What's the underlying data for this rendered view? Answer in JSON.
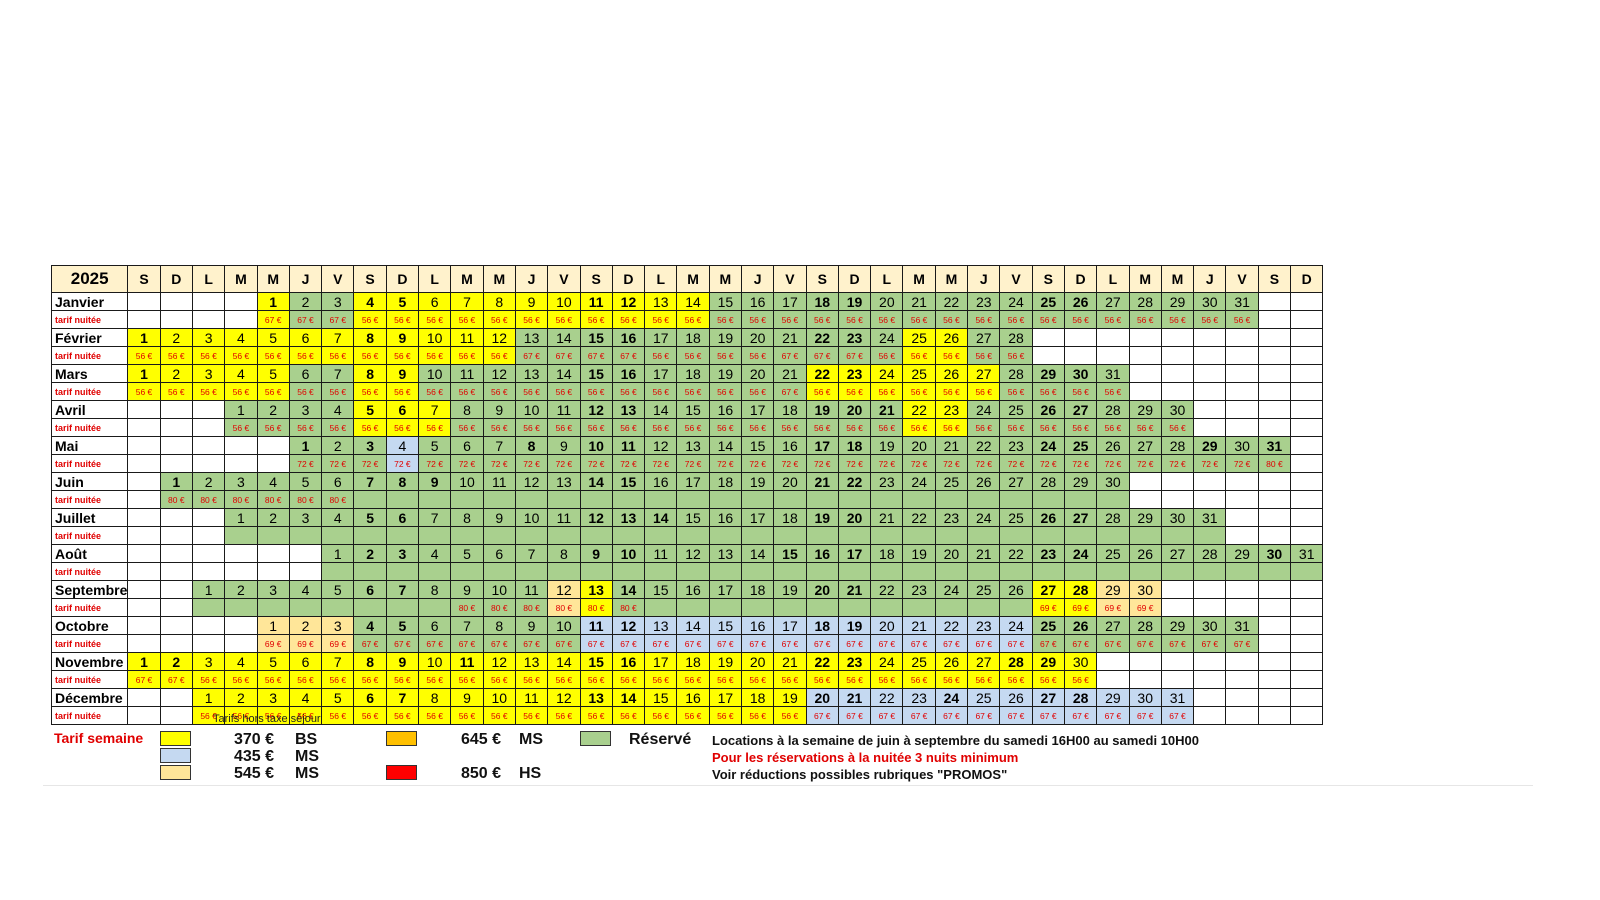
{
  "year": "2025",
  "day_headers": [
    "S",
    "D",
    "L",
    "M",
    "M",
    "J",
    "V",
    "S",
    "D",
    "L",
    "M",
    "M",
    "J",
    "V",
    "S",
    "D",
    "L",
    "M",
    "M",
    "J",
    "V",
    "S",
    "D",
    "L",
    "M",
    "M",
    "J",
    "V",
    "S",
    "D",
    "L",
    "M",
    "M",
    "J",
    "V",
    "S",
    "D"
  ],
  "price_row_label": "tarif nuitée",
  "months": [
    {
      "name": "Janvier",
      "start": 4,
      "days": 31,
      "bold": [
        1,
        4,
        5,
        11,
        12,
        18,
        19,
        25,
        26
      ],
      "yellow": [
        1,
        4,
        5,
        6,
        7,
        8,
        9,
        10,
        11,
        12,
        13,
        14
      ],
      "green": [
        2,
        3,
        15,
        16,
        17,
        18,
        19,
        20,
        21,
        22,
        23,
        24,
        25,
        26,
        27,
        28,
        29,
        30,
        31
      ],
      "blue": [],
      "peach": [],
      "prices": [
        {
          "from": 1,
          "to": 3,
          "p": "67 €"
        },
        {
          "from": 4,
          "to": 31,
          "p": "56 €"
        }
      ]
    },
    {
      "name": "Février",
      "start": 0,
      "days": 28,
      "bold": [
        1,
        8,
        9,
        15,
        16,
        22,
        23
      ],
      "yellow": [
        1,
        2,
        3,
        4,
        5,
        6,
        7,
        8,
        9,
        10,
        11,
        12,
        25,
        26
      ],
      "green": [
        13,
        14,
        15,
        16,
        17,
        18,
        19,
        20,
        21,
        22,
        23,
        24,
        27,
        28
      ],
      "blue": [],
      "peach": [],
      "prices": [
        {
          "from": 1,
          "to": 12,
          "p": "56 €"
        },
        {
          "from": 13,
          "to": 16,
          "p": "67 €"
        },
        {
          "from": 17,
          "to": 20,
          "p": "56 €"
        },
        {
          "from": 21,
          "to": 23,
          "p": "67 €"
        },
        {
          "from": 24,
          "to": 28,
          "p": "56 €"
        }
      ]
    },
    {
      "name": "Mars",
      "start": 0,
      "days": 31,
      "bold": [
        1,
        8,
        9,
        15,
        16,
        22,
        23,
        29,
        30
      ],
      "yellow": [
        1,
        2,
        3,
        4,
        5,
        8,
        9,
        22,
        23,
        24,
        25,
        26,
        27
      ],
      "green": [
        6,
        7,
        10,
        11,
        12,
        13,
        14,
        15,
        16,
        17,
        18,
        19,
        20,
        21,
        28,
        29,
        30,
        31
      ],
      "blue": [],
      "peach": [],
      "prices": [
        {
          "from": 1,
          "to": 20,
          "p": "56 €"
        },
        {
          "from": 21,
          "to": 21,
          "p": "67 €"
        },
        {
          "from": 22,
          "to": 31,
          "p": "56 €"
        }
      ]
    },
    {
      "name": "Avril",
      "start": 3,
      "days": 30,
      "bold": [
        5,
        6,
        12,
        13,
        19,
        20,
        21,
        26,
        27
      ],
      "yellow": [
        5,
        6,
        7,
        22,
        23
      ],
      "green": [
        1,
        2,
        3,
        4,
        8,
        9,
        10,
        11,
        12,
        13,
        14,
        15,
        16,
        17,
        18,
        19,
        20,
        21,
        24,
        25,
        26,
        27,
        28,
        29,
        30
      ],
      "blue": [],
      "peach": [],
      "prices": [
        {
          "from": 1,
          "to": 30,
          "p": "56 €"
        }
      ]
    },
    {
      "name": "Mai",
      "start": 5,
      "days": 31,
      "bold": [
        1,
        3,
        8,
        10,
        11,
        17,
        18,
        24,
        25,
        29,
        31
      ],
      "yellow": [],
      "green": [
        1,
        2,
        3,
        5,
        6,
        7,
        8,
        9,
        10,
        11,
        12,
        13,
        14,
        15,
        16,
        17,
        18,
        19,
        20,
        21,
        22,
        23,
        24,
        25,
        26,
        27,
        28,
        29,
        30,
        31
      ],
      "blue": [
        4
      ],
      "peach": [],
      "prices": [
        {
          "from": 1,
          "to": 30,
          "p": "72 €"
        },
        {
          "from": 31,
          "to": 31,
          "p": "80 €"
        }
      ]
    },
    {
      "name": "Juin",
      "start": 1,
      "days": 30,
      "bold": [
        1,
        7,
        8,
        9,
        14,
        15,
        21,
        22
      ],
      "yellow": [],
      "green": [
        1,
        2,
        3,
        4,
        5,
        6,
        7,
        8,
        9,
        10,
        11,
        12,
        13,
        14,
        15,
        16,
        17,
        18,
        19,
        20,
        21,
        22,
        23,
        24,
        25,
        26,
        27,
        28,
        29,
        30
      ],
      "blue": [],
      "peach": [],
      "prices": [
        {
          "from": 1,
          "to": 6,
          "p": "80 €"
        }
      ]
    },
    {
      "name": "Juillet",
      "start": 3,
      "days": 31,
      "bold": [
        5,
        6,
        12,
        13,
        14,
        19,
        20,
        26,
        27
      ],
      "yellow": [],
      "green": [
        1,
        2,
        3,
        4,
        5,
        6,
        7,
        8,
        9,
        10,
        11,
        12,
        13,
        14,
        15,
        16,
        17,
        18,
        19,
        20,
        21,
        22,
        23,
        24,
        25,
        26,
        27,
        28,
        29,
        30,
        31
      ],
      "blue": [],
      "peach": [],
      "prices": []
    },
    {
      "name": "Août",
      "start": 6,
      "days": 31,
      "bold": [
        2,
        3,
        9,
        10,
        15,
        16,
        17,
        23,
        24,
        30
      ],
      "yellow": [],
      "green": [
        1,
        2,
        3,
        4,
        5,
        6,
        7,
        8,
        9,
        10,
        11,
        12,
        13,
        14,
        15,
        16,
        17,
        18,
        19,
        20,
        21,
        22,
        23,
        24,
        25,
        26,
        27,
        28,
        29,
        30,
        31
      ],
      "blue": [],
      "peach": [],
      "prices": []
    },
    {
      "name": "Septembre",
      "start": 2,
      "days": 30,
      "bold": [
        6,
        7,
        13,
        14,
        20,
        21,
        27,
        28
      ],
      "yellow": [
        13,
        27,
        28
      ],
      "green": [
        1,
        2,
        3,
        4,
        5,
        6,
        7,
        8,
        9,
        10,
        11,
        14,
        15,
        16,
        17,
        18,
        19,
        20,
        21,
        22,
        23,
        24,
        25,
        26
      ],
      "blue": [],
      "peach": [
        12,
        29,
        30
      ],
      "prices": [
        {
          "from": 9,
          "to": 14,
          "p": "80 €"
        },
        {
          "from": 27,
          "to": 30,
          "p": "69 €"
        }
      ]
    },
    {
      "name": "Octobre",
      "start": 4,
      "days": 31,
      "bold": [
        4,
        5,
        11,
        12,
        18,
        19,
        25,
        26
      ],
      "yellow": [],
      "green": [
        4,
        5,
        6,
        7,
        8,
        9,
        10,
        25,
        26,
        27,
        28,
        29,
        30,
        31
      ],
      "blue": [
        11,
        12,
        13,
        14,
        15,
        16,
        17,
        18,
        19,
        20,
        21,
        22,
        23,
        24
      ],
      "peach": [
        1,
        2,
        3
      ],
      "prices": [
        {
          "from": 1,
          "to": 3,
          "p": "69 €"
        },
        {
          "from": 4,
          "to": 31,
          "p": "67 €"
        }
      ]
    },
    {
      "name": "Novembre",
      "start": 0,
      "days": 30,
      "bold": [
        1,
        2,
        8,
        9,
        11,
        15,
        16,
        22,
        23,
        28,
        29
      ],
      "yellow": [
        1,
        2,
        3,
        4,
        5,
        6,
        7,
        8,
        9,
        10,
        11,
        12,
        13,
        14,
        15,
        16,
        17,
        18,
        19,
        20,
        21,
        22,
        23,
        24,
        25,
        26,
        27,
        28,
        29,
        30
      ],
      "green": [],
      "blue": [],
      "peach": [],
      "prices": [
        {
          "from": 1,
          "to": 2,
          "p": "67 €"
        },
        {
          "from": 3,
          "to": 30,
          "p": "56 €"
        }
      ]
    },
    {
      "name": "Décembre",
      "start": 2,
      "days": 31,
      "bold": [
        6,
        7,
        13,
        14,
        20,
        21,
        24,
        27,
        28
      ],
      "yellow": [
        1,
        2,
        3,
        4,
        5,
        6,
        7,
        8,
        9,
        10,
        11,
        12,
        13,
        14,
        15,
        16,
        17,
        18,
        19
      ],
      "green": [],
      "blue": [
        20,
        21,
        22,
        23,
        24,
        25,
        26,
        27,
        28,
        29,
        30,
        31
      ],
      "peach": [],
      "prices": [
        {
          "from": 1,
          "to": 19,
          "p": "56 €"
        },
        {
          "from": 20,
          "to": 31,
          "p": "67 €"
        }
      ]
    }
  ],
  "legend": {
    "title": "Tarif semaine",
    "subtitle": "Tarifs hors taxe séjour",
    "rates": [
      {
        "price": "370 €",
        "code": "BS",
        "color": "#ffff00"
      },
      {
        "price": "435 €",
        "code": "MS",
        "color": "#c5d9f1"
      },
      {
        "price": "545 €",
        "code": "MS",
        "color": "#ffe699"
      },
      {
        "price": "645 €",
        "code": "MS",
        "color": "#ffc000"
      },
      {
        "price": "850 €",
        "code": "HS",
        "color": "#ff0000"
      }
    ],
    "reserved_label": "Réservé",
    "reserved_color": "#a9d08e"
  },
  "notes": {
    "line1": "Locations à la semaine de juin à septembre du samedi 16H00 au samedi 10H00",
    "line2": "Pour les réservations à la nuitée 3 nuits minimum",
    "line3": "Voir réductions possibles rubriques \"PROMOS\""
  }
}
